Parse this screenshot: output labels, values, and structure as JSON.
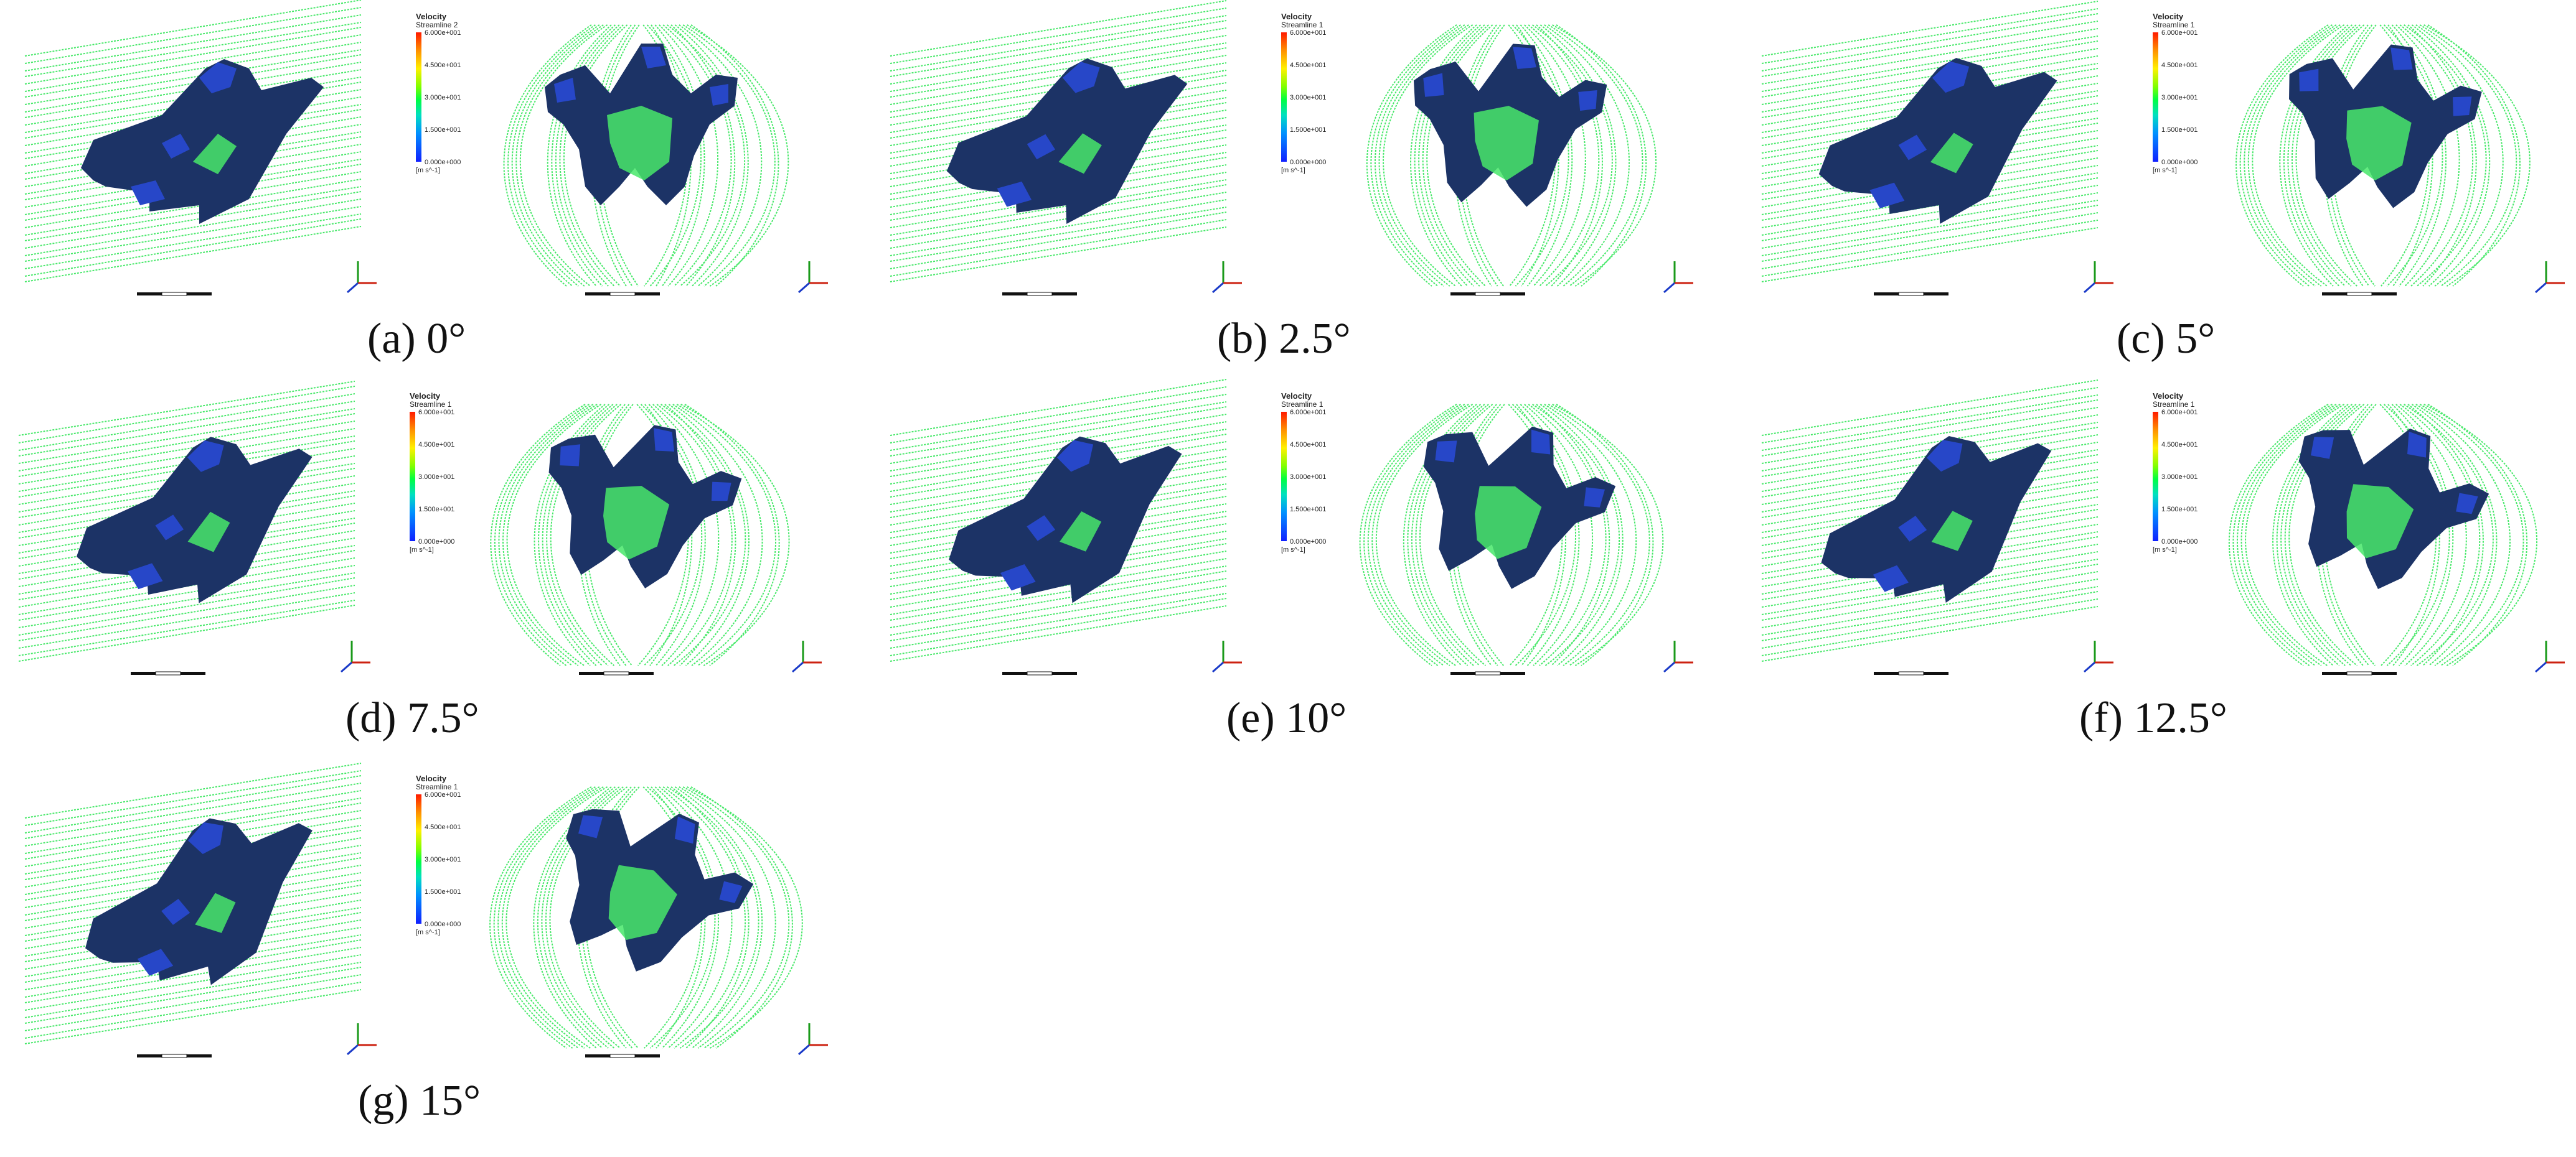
{
  "legend": {
    "title": "Velocity",
    "ticks": [
      "6.000e+001",
      "4.500e+001",
      "3.000e+001",
      "1.500e+001",
      "0.000e+000"
    ],
    "unit": "[m s^-1]"
  },
  "colors": {
    "streamline": "#48e86a",
    "model": "#1c3366",
    "model_highlight": "#2747c8"
  },
  "panels": [
    {
      "id": "a",
      "caption": "(a) 0°",
      "streamline_label": "Streamline 2"
    },
    {
      "id": "b",
      "caption": "(b) 2.5°",
      "streamline_label": "Streamline 1"
    },
    {
      "id": "c",
      "caption": "(c) 5°",
      "streamline_label": "Streamline 1"
    },
    {
      "id": "d",
      "caption": "(d) 7.5°",
      "streamline_label": "Streamline 1"
    },
    {
      "id": "e",
      "caption": "(e) 10°",
      "streamline_label": "Streamline 1"
    },
    {
      "id": "f",
      "caption": "(f) 12.5°",
      "streamline_label": "Streamline 1"
    },
    {
      "id": "g",
      "caption": "(g) 15°",
      "streamline_label": "Streamline 1"
    }
  ]
}
